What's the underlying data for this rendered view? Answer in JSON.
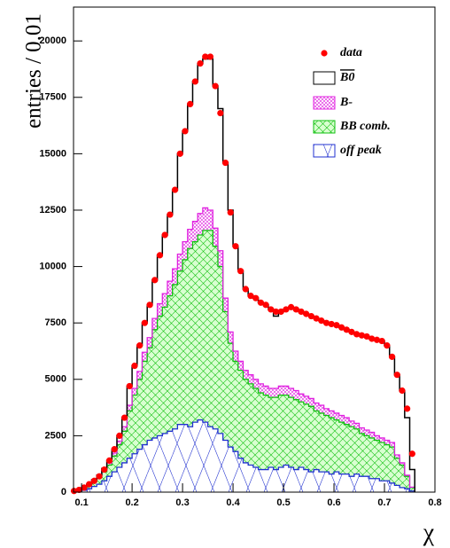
{
  "chart_data": {
    "type": "histogram",
    "y_label": "entries / 0.01",
    "x_label": "χ",
    "xlim": [
      0.084,
      0.8
    ],
    "ylim": [
      0,
      21500
    ],
    "xticks": [
      0.1,
      0.2,
      0.3,
      0.4,
      0.5,
      0.6,
      0.7,
      0.8
    ],
    "yticks": [
      0,
      2500,
      5000,
      7500,
      10000,
      12500,
      15000,
      17500,
      20000
    ],
    "bins": [
      0.08,
      0.09,
      0.1,
      0.11,
      0.12,
      0.13,
      0.14,
      0.15,
      0.16,
      0.17,
      0.18,
      0.19,
      0.2,
      0.21,
      0.22,
      0.23,
      0.24,
      0.25,
      0.26,
      0.27,
      0.28,
      0.29,
      0.3,
      0.31,
      0.32,
      0.33,
      0.34,
      0.35,
      0.36,
      0.37,
      0.38,
      0.39,
      0.4,
      0.41,
      0.42,
      0.43,
      0.44,
      0.45,
      0.46,
      0.47,
      0.48,
      0.49,
      0.5,
      0.51,
      0.52,
      0.53,
      0.54,
      0.55,
      0.56,
      0.57,
      0.58,
      0.59,
      0.6,
      0.61,
      0.62,
      0.63,
      0.64,
      0.65,
      0.66,
      0.67,
      0.68,
      0.69,
      0.7,
      0.71,
      0.72,
      0.73,
      0.74,
      0.75,
      0.76
    ],
    "stacked": true,
    "series": [
      {
        "name": "data",
        "color": "#ff0000",
        "kind": "points",
        "x": [
          0.085,
          0.095,
          0.105,
          0.115,
          0.125,
          0.135,
          0.145,
          0.155,
          0.165,
          0.175,
          0.185,
          0.195,
          0.205,
          0.215,
          0.225,
          0.235,
          0.245,
          0.255,
          0.265,
          0.275,
          0.285,
          0.295,
          0.305,
          0.315,
          0.325,
          0.335,
          0.345,
          0.355,
          0.365,
          0.375,
          0.385,
          0.395,
          0.405,
          0.415,
          0.425,
          0.435,
          0.445,
          0.455,
          0.465,
          0.475,
          0.485,
          0.495,
          0.505,
          0.515,
          0.525,
          0.535,
          0.545,
          0.555,
          0.565,
          0.575,
          0.585,
          0.595,
          0.605,
          0.615,
          0.625,
          0.635,
          0.645,
          0.655,
          0.665,
          0.675,
          0.685,
          0.695,
          0.705,
          0.715,
          0.725,
          0.735,
          0.745,
          0.755
        ],
        "values": [
          50,
          100,
          200,
          350,
          500,
          700,
          1000,
          1400,
          1900,
          2500,
          3300,
          4700,
          5600,
          6500,
          7500,
          8300,
          9400,
          10500,
          11400,
          12300,
          13400,
          15000,
          16000,
          17200,
          18200,
          19000,
          19300,
          19300,
          18000,
          16800,
          14600,
          12400,
          10900,
          9800,
          9000,
          8700,
          8600,
          8400,
          8300,
          8100,
          8000,
          8000,
          8100,
          8200,
          8100,
          8000,
          7900,
          7800,
          7700,
          7600,
          7500,
          7450,
          7400,
          7300,
          7200,
          7100,
          7000,
          6950,
          6900,
          6800,
          6750,
          6700,
          6500,
          6000,
          5200,
          4500,
          3700,
          1700
        ]
      },
      {
        "name": "B0",
        "color": "#000000",
        "values": [
          0,
          0,
          0,
          0,
          30,
          50,
          80,
          100,
          170,
          240,
          400,
          850,
          1000,
          1150,
          1300,
          1450,
          1700,
          2150,
          2600,
          2950,
          3500,
          4450,
          4900,
          5550,
          6200,
          6650,
          6600,
          6700,
          6300,
          6300,
          6000,
          5400,
          4650,
          4000,
          3600,
          3500,
          3600,
          3600,
          3600,
          3500,
          3200,
          3300,
          3400,
          3600,
          3600,
          3650,
          3650,
          3650,
          3750,
          3750,
          3800,
          3850,
          3900,
          3900,
          3900,
          3950,
          3950,
          4100,
          4150,
          4150,
          4250,
          4300,
          4200,
          3800,
          3550,
          3200,
          2550,
          780
        ]
      },
      {
        "name": "B-",
        "color": "#e020e0",
        "values": [
          0,
          10,
          20,
          30,
          40,
          50,
          70,
          100,
          130,
          160,
          200,
          250,
          300,
          350,
          400,
          450,
          500,
          550,
          600,
          650,
          700,
          750,
          800,
          850,
          900,
          950,
          1000,
          900,
          800,
          700,
          600,
          500,
          450,
          400,
          400,
          400,
          400,
          400,
          400,
          400,
          400,
          400,
          400,
          400,
          400,
          350,
          350,
          350,
          350,
          350,
          300,
          300,
          300,
          300,
          300,
          250,
          250,
          250,
          250,
          250,
          200,
          200,
          200,
          200,
          150,
          100,
          50,
          20
        ]
      },
      {
        "name": "BB comb.",
        "color": "#10c010",
        "values": [
          30,
          50,
          100,
          170,
          230,
          300,
          400,
          500,
          700,
          1000,
          1400,
          2100,
          2600,
          3100,
          3700,
          4100,
          4800,
          5300,
          5600,
          6000,
          6400,
          6800,
          7300,
          7900,
          8000,
          8200,
          8500,
          8700,
          8100,
          7400,
          5700,
          4600,
          4000,
          3900,
          3700,
          3600,
          3500,
          3400,
          3300,
          3100,
          3200,
          3200,
          3100,
          3100,
          3100,
          2900,
          2900,
          2900,
          2600,
          2600,
          2500,
          2500,
          2300,
          2300,
          2200,
          2200,
          2000,
          1900,
          1800,
          1800,
          1700,
          1700,
          1600,
          1600,
          1200,
          1000,
          550,
          150
        ]
      },
      {
        "name": "off peak",
        "color": "#2030d0",
        "values": [
          20,
          40,
          80,
          150,
          250,
          350,
          500,
          700,
          900,
          1100,
          1300,
          1500,
          1700,
          1900,
          2100,
          2300,
          2400,
          2500,
          2600,
          2700,
          2800,
          3000,
          3000,
          2900,
          3100,
          3200,
          3100,
          2900,
          2800,
          2600,
          2300,
          2000,
          1800,
          1500,
          1300,
          1200,
          1100,
          1000,
          1000,
          1100,
          1000,
          1100,
          1200,
          1100,
          1000,
          1100,
          1000,
          900,
          1000,
          900,
          900,
          800,
          900,
          800,
          800,
          700,
          800,
          700,
          700,
          600,
          600,
          500,
          500,
          400,
          300,
          200,
          150,
          50
        ]
      }
    ]
  }
}
